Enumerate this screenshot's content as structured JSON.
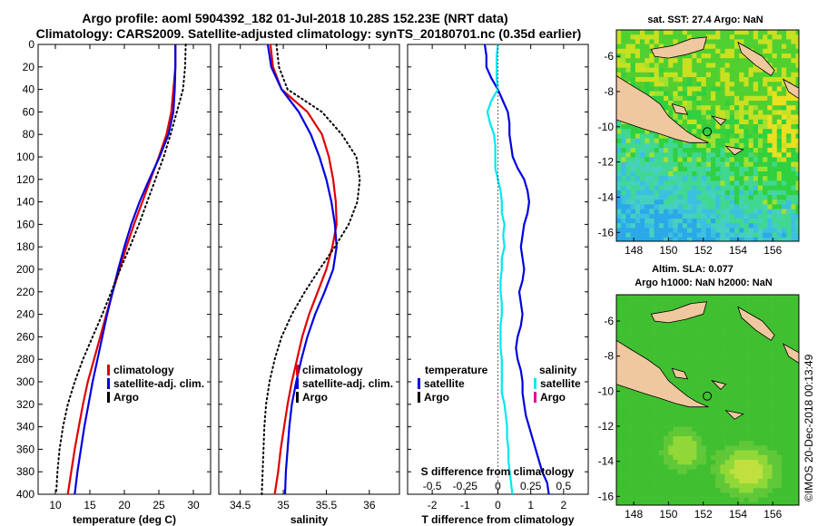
{
  "title": {
    "line1": "Argo profile: aoml 5904392_182 01-Jul-2018 10.28S 152.23E (NRT data)",
    "line2": "Climatology: CARS2009. Satellite-adjusted climatology: synTS_20180701.nc (0.35d earlier)"
  },
  "watermark": "©IMOS 20-Dec-2018 00:13:49",
  "colors": {
    "clim": "#e00000",
    "sat": "#0000e0",
    "argo": "#000000",
    "sal_sat": "#00e8f0",
    "sal_argo": "#e000a0"
  },
  "chart_data": [
    {
      "type": "line",
      "name": "temperature",
      "xlabel": "temperature (deg C)",
      "ylabel": "",
      "xlim": [
        7.5,
        32.5
      ],
      "ylim": [
        400,
        0
      ],
      "xticks": [
        "10",
        "15",
        "20",
        "25",
        "30"
      ],
      "xtick_values": [
        10,
        15,
        20,
        25,
        30
      ],
      "yticks": [
        "0",
        "20",
        "40",
        "60",
        "80",
        "100",
        "120",
        "140",
        "160",
        "180",
        "200",
        "220",
        "240",
        "260",
        "280",
        "300",
        "320",
        "340",
        "360",
        "380",
        "400"
      ],
      "legend": [
        "climatology",
        "satellite-adj. clim.",
        "Argo"
      ],
      "series": [
        {
          "name": "climatology",
          "color": "#e00000",
          "style": "solid",
          "depth": [
            0,
            20,
            40,
            60,
            80,
            100,
            120,
            140,
            160,
            180,
            200,
            220,
            240,
            260,
            280,
            300,
            320,
            340,
            360,
            380,
            400
          ],
          "values": [
            27.4,
            27.4,
            27.1,
            26.8,
            26.1,
            25.0,
            23.8,
            22.6,
            21.4,
            20.3,
            19.3,
            18.3,
            17.4,
            16.5,
            15.6,
            14.7,
            14.0,
            13.4,
            12.8,
            12.3,
            11.8
          ]
        },
        {
          "name": "satellite-adj. clim.",
          "color": "#0000e0",
          "style": "solid",
          "depth": [
            0,
            20,
            40,
            60,
            80,
            100,
            120,
            140,
            160,
            180,
            200,
            220,
            240,
            260,
            280,
            300,
            320,
            340,
            360,
            380,
            400
          ],
          "values": [
            27.4,
            27.4,
            27.3,
            27.1,
            26.4,
            25.1,
            23.6,
            22.2,
            21.0,
            20.0,
            19.1,
            18.3,
            17.5,
            16.8,
            16.1,
            15.4,
            14.8,
            14.2,
            13.7,
            13.2,
            12.8
          ]
        },
        {
          "name": "Argo",
          "color": "#000000",
          "style": "dotted",
          "depth": [
            0,
            20,
            40,
            60,
            80,
            100,
            120,
            140,
            160,
            180,
            200,
            220,
            240,
            260,
            280,
            300,
            320,
            340,
            360,
            380,
            400
          ],
          "values": [
            28.9,
            28.8,
            28.5,
            27.6,
            26.7,
            25.7,
            24.5,
            23.3,
            22.1,
            20.8,
            19.4,
            18.1,
            16.8,
            15.4,
            14.0,
            12.8,
            11.8,
            11.1,
            10.6,
            10.3,
            10.1
          ]
        }
      ]
    },
    {
      "type": "line",
      "name": "salinity",
      "xlabel": "salinity",
      "xlim": [
        34.25,
        36.35
      ],
      "ylim": [
        400,
        0
      ],
      "xticks": [
        "34.5",
        "35",
        "35.5",
        "36"
      ],
      "xtick_values": [
        34.5,
        35.0,
        35.5,
        36.0
      ],
      "legend": [
        "climatology",
        "satellite-adj. clim.",
        "Argo"
      ],
      "series": [
        {
          "name": "climatology",
          "color": "#e00000",
          "style": "solid",
          "depth": [
            0,
            20,
            40,
            60,
            80,
            100,
            120,
            140,
            160,
            180,
            200,
            220,
            240,
            260,
            280,
            300,
            320,
            340,
            360,
            380,
            400
          ],
          "values": [
            34.85,
            34.88,
            34.98,
            35.28,
            35.45,
            35.53,
            35.58,
            35.61,
            35.62,
            35.57,
            35.5,
            35.4,
            35.3,
            35.22,
            35.16,
            35.1,
            35.05,
            35.01,
            34.97,
            34.94,
            34.9
          ]
        },
        {
          "name": "satellite-adj. clim.",
          "color": "#0000e0",
          "style": "solid",
          "depth": [
            0,
            20,
            40,
            60,
            80,
            100,
            120,
            140,
            160,
            180,
            200,
            220,
            240,
            260,
            280,
            300,
            320,
            340,
            360,
            380,
            400
          ],
          "values": [
            34.82,
            34.86,
            34.98,
            35.18,
            35.32,
            35.42,
            35.5,
            35.56,
            35.6,
            35.62,
            35.58,
            35.48,
            35.37,
            35.28,
            35.21,
            35.15,
            35.1,
            35.07,
            35.05,
            35.03,
            35.02
          ]
        },
        {
          "name": "Argo",
          "color": "#000000",
          "style": "dotted",
          "depth": [
            0,
            20,
            40,
            60,
            80,
            100,
            120,
            140,
            160,
            180,
            200,
            220,
            240,
            260,
            280,
            300,
            320,
            340,
            360,
            380,
            400
          ],
          "values": [
            34.92,
            34.95,
            35.05,
            35.45,
            35.68,
            35.85,
            35.89,
            35.86,
            35.76,
            35.6,
            35.42,
            35.25,
            35.1,
            34.98,
            34.9,
            34.84,
            34.8,
            34.78,
            34.77,
            34.76,
            34.75
          ]
        }
      ]
    },
    {
      "type": "line",
      "name": "differences",
      "xlabel": "T difference from climatology",
      "xlabel_top": "S difference from climatology",
      "xlim": [
        -2.75,
        2.75
      ],
      "ylim": [
        400,
        0
      ],
      "xticks": [
        "-2",
        "-1",
        "0",
        "1",
        "2"
      ],
      "xtick_values": [
        -2,
        -1,
        0,
        1,
        2
      ],
      "sticks": [
        "-0.5",
        "-0.25",
        "0",
        "0.25",
        "0.5"
      ],
      "stick_values": [
        -0.5,
        -0.25,
        0,
        0.25,
        0.5
      ],
      "s_scale": 4,
      "legend_left_title": "temperature",
      "legend_right_title": "salinity",
      "legend_left": [
        "satellite",
        "Argo"
      ],
      "legend_right": [
        "satellite",
        "Argo"
      ],
      "series": [
        {
          "name": "T satellite",
          "color": "#0000e0",
          "style": "solid",
          "scale": 1,
          "depth": [
            0,
            10,
            20,
            30,
            40,
            50,
            60,
            70,
            80,
            90,
            100,
            110,
            120,
            130,
            140,
            150,
            160,
            170,
            180,
            190,
            200,
            210,
            220,
            230,
            240,
            250,
            260,
            270,
            280,
            290,
            300,
            310,
            320,
            330,
            340,
            350,
            360,
            370,
            380,
            390,
            400
          ],
          "values": [
            -0.4,
            -0.35,
            -0.35,
            -0.2,
            0.0,
            0.15,
            0.3,
            0.35,
            0.35,
            0.4,
            0.45,
            0.6,
            0.8,
            0.9,
            0.95,
            0.9,
            0.8,
            0.75,
            0.7,
            0.75,
            0.8,
            0.75,
            0.65,
            0.7,
            0.75,
            0.7,
            0.6,
            0.55,
            0.6,
            0.7,
            0.75,
            0.75,
            0.8,
            0.85,
            0.95,
            1.05,
            1.15,
            1.25,
            1.35,
            1.5,
            1.55
          ]
        },
        {
          "name": "S satellite",
          "color": "#00e8f0",
          "style": "solid",
          "scale": 4,
          "depth": [
            0,
            10,
            20,
            30,
            40,
            50,
            60,
            70,
            80,
            90,
            100,
            110,
            120,
            130,
            140,
            150,
            160,
            170,
            180,
            190,
            200,
            210,
            220,
            230,
            240,
            250,
            260,
            270,
            280,
            290,
            300,
            310,
            320,
            330,
            340,
            350,
            360,
            370,
            380,
            390,
            400
          ],
          "values": [
            0.0,
            -0.01,
            -0.01,
            -0.01,
            0.0,
            -0.05,
            -0.08,
            -0.06,
            -0.03,
            -0.02,
            -0.02,
            -0.02,
            0.0,
            0.02,
            0.03,
            0.03,
            0.05,
            0.04,
            0.05,
            0.03,
            0.03,
            0.02,
            0.02,
            0.03,
            0.03,
            0.02,
            0.02,
            0.02,
            0.03,
            0.03,
            0.03,
            0.03,
            0.05,
            0.06,
            0.07,
            0.07,
            0.08,
            0.08,
            0.09,
            0.1,
            0.11
          ]
        }
      ]
    },
    {
      "type": "heatmap",
      "name": "sst_map",
      "title": "sat. SST: 27.4 Argo: NaN",
      "xlim": [
        147,
        157.5
      ],
      "ylim": [
        -16.5,
        -4.5
      ],
      "xticks": [
        "148",
        "150",
        "152",
        "154",
        "156"
      ],
      "xtick_values": [
        148,
        150,
        152,
        154,
        156
      ],
      "yticks": [
        "-6",
        "-8",
        "-10",
        "-12",
        "-14",
        "-16"
      ],
      "ytick_values": [
        -6,
        -8,
        -10,
        -12,
        -14,
        -16
      ],
      "marker": {
        "lon": 152.23,
        "lat": -10.28
      }
    },
    {
      "type": "heatmap",
      "name": "sla_map",
      "title_line1": "Altim. SLA: 0.077",
      "title_line2": "Argo h1000: NaN h2000: NaN",
      "xlim": [
        147,
        157.5
      ],
      "ylim": [
        -16.5,
        -4.5
      ],
      "xticks": [
        "148",
        "150",
        "152",
        "154",
        "156"
      ],
      "xtick_values": [
        148,
        150,
        152,
        154,
        156
      ],
      "yticks": [
        "-6",
        "-8",
        "-10",
        "-12",
        "-14",
        "-16"
      ],
      "ytick_values": [
        -6,
        -8,
        -10,
        -12,
        -14,
        -16
      ],
      "marker": {
        "lon": 152.23,
        "lat": -10.28
      }
    }
  ]
}
